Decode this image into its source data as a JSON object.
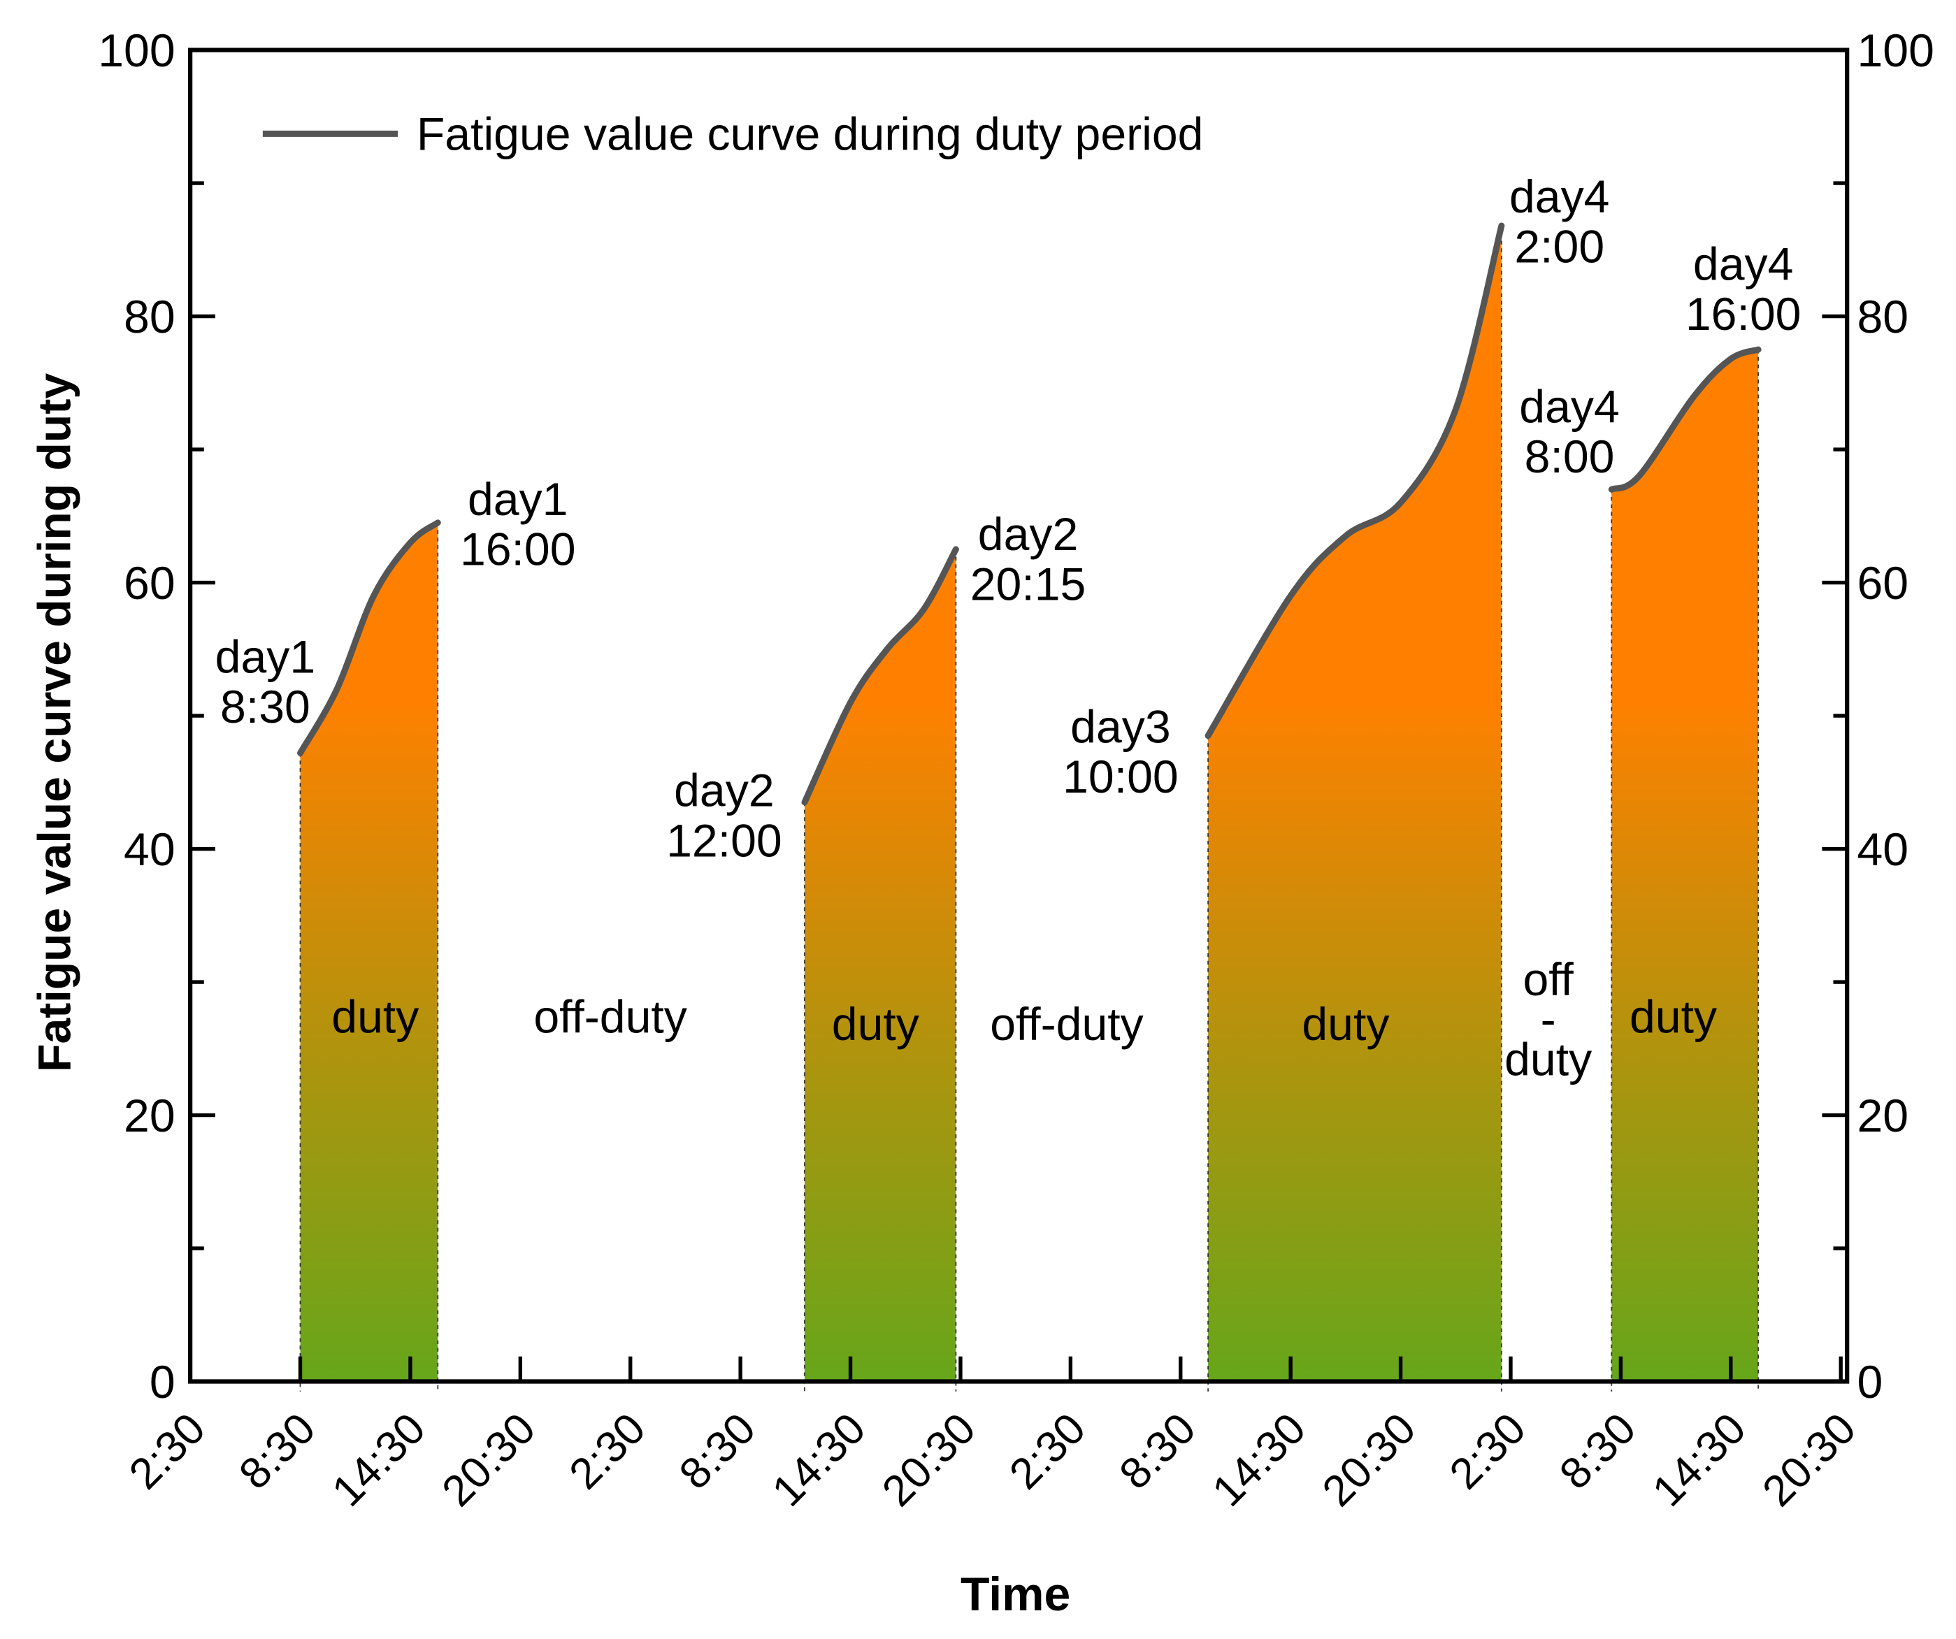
{
  "chart_data": {
    "type": "area",
    "title": "",
    "xlabel": "Time",
    "ylabel": "Fatigue value curve during duty",
    "ylim": [
      0,
      100
    ],
    "y_ticks": [
      "0",
      "20",
      "40",
      "60",
      "80",
      "100"
    ],
    "y_right_ticks": [
      "0",
      "20",
      "40",
      "60",
      "80",
      "100"
    ],
    "x_ticks": [
      "2:30",
      "8:30",
      "14:30",
      "20:30",
      "2:30",
      "8:30",
      "14:30",
      "20:30",
      "2:30",
      "8:30",
      "14:30",
      "20:30",
      "2:30",
      "8:30",
      "14:30",
      "20:30"
    ],
    "x_range": [
      "day1 2:30",
      "day4 20:30"
    ],
    "grid": false,
    "legend": {
      "position": "top-left",
      "entries": [
        "Fatigue value curve during duty period"
      ]
    },
    "colors": {
      "line": "#555555",
      "fill_top": "#FF8000",
      "fill_bottom": "#66A61A"
    },
    "series": [
      {
        "name": "Fatigue value curve during duty period",
        "segments": [
          {
            "points": [
              [
                "day1 8:30",
                47.2
              ],
              [
                "day1 10:30",
                52
              ],
              [
                "day1 12:30",
                59
              ],
              [
                "day1 14:30",
                63
              ],
              [
                "day1 16:00",
                64.5
              ]
            ]
          },
          {
            "points": [
              [
                "day2 12:00",
                43.5
              ],
              [
                "day2 14:30",
                51
              ],
              [
                "day2 16:30",
                55
              ],
              [
                "day2 18:30",
                58
              ],
              [
                "day2 20:15",
                62.5
              ]
            ]
          },
          {
            "points": [
              [
                "day3 10:00",
                48.5
              ],
              [
                "day3 14:30",
                59
              ],
              [
                "day3 17:30",
                63.5
              ],
              [
                "day3 20:30",
                66
              ],
              [
                "day3 23:30",
                73
              ],
              [
                "day4 2:00",
                86.8
              ]
            ]
          },
          {
            "points": [
              [
                "day4 8:00",
                67
              ],
              [
                "day4 9:30",
                68
              ],
              [
                "day4 12:30",
                74
              ],
              [
                "day4 14:30",
                76.8
              ],
              [
                "day4 16:00",
                77.5
              ]
            ]
          }
        ]
      }
    ],
    "annotations": [
      {
        "lines": [
          "day1",
          "8:30"
        ]
      },
      {
        "lines": [
          "day1",
          "16:00"
        ]
      },
      {
        "lines": [
          "day2",
          "12:00"
        ]
      },
      {
        "lines": [
          "day2",
          "20:15"
        ]
      },
      {
        "lines": [
          "day3",
          "10:00"
        ]
      },
      {
        "lines": [
          "day4",
          "2:00"
        ]
      },
      {
        "lines": [
          "day4",
          "8:00"
        ]
      },
      {
        "lines": [
          "day4",
          "16:00"
        ]
      }
    ],
    "region_labels": [
      {
        "lines": [
          "duty"
        ]
      },
      {
        "lines": [
          "off-duty"
        ]
      },
      {
        "lines": [
          "duty"
        ]
      },
      {
        "lines": [
          "off-duty"
        ]
      },
      {
        "lines": [
          "duty"
        ]
      },
      {
        "lines": [
          "off",
          "-",
          "duty"
        ]
      },
      {
        "lines": [
          "duty"
        ]
      }
    ]
  }
}
